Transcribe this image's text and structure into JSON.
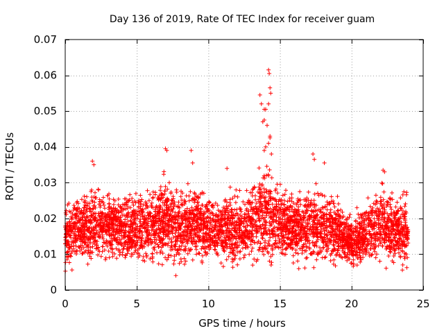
{
  "chart_data": {
    "type": "scatter",
    "title": "Day 136 of 2019, Rate Of TEC Index for receiver guam",
    "xlabel": "GPS time / hours",
    "ylabel": "ROTI / TECUs",
    "xlim": [
      0,
      25
    ],
    "ylim": [
      0,
      0.07
    ],
    "xticks": [
      0,
      5,
      10,
      15,
      20,
      25
    ],
    "xtick_labels": [
      "0",
      "5",
      "10",
      "15",
      "20",
      "25"
    ],
    "yticks": [
      0,
      0.01,
      0.02,
      0.03,
      0.04,
      0.05,
      0.06,
      0.07
    ],
    "ytick_labels": [
      "0",
      "0.01",
      "0.02",
      "0.03",
      "0.04",
      "0.05",
      "0.06",
      "0.07"
    ],
    "grid": true,
    "marker": "+",
    "color": "#ff0000",
    "series": [
      {
        "name": "ROTI",
        "envelope": {
          "description": "approximate typical band of ROTI values (TECU/min) by hour",
          "hours": [
            0,
            1,
            2,
            3,
            4,
            5,
            6,
            7,
            8,
            9,
            10,
            11,
            12,
            13,
            14,
            15,
            16,
            17,
            18,
            19,
            20,
            21,
            22,
            23,
            24
          ],
          "low": [
            0.005,
            0.006,
            0.006,
            0.006,
            0.006,
            0.006,
            0.006,
            0.006,
            0.004,
            0.006,
            0.006,
            0.006,
            0.005,
            0.006,
            0.006,
            0.006,
            0.006,
            0.006,
            0.006,
            0.006,
            0.005,
            0.006,
            0.006,
            0.005,
            0.005
          ],
          "high": [
            0.025,
            0.027,
            0.03,
            0.028,
            0.027,
            0.028,
            0.029,
            0.032,
            0.028,
            0.031,
            0.027,
            0.027,
            0.028,
            0.03,
            0.035,
            0.03,
            0.027,
            0.03,
            0.028,
            0.026,
            0.02,
            0.025,
            0.03,
            0.027,
            0.028
          ]
        },
        "notable_points": [
          {
            "x": 1.9,
            "y": 0.036
          },
          {
            "x": 2.0,
            "y": 0.035
          },
          {
            "x": 7.0,
            "y": 0.0395
          },
          {
            "x": 7.1,
            "y": 0.039
          },
          {
            "x": 8.8,
            "y": 0.039
          },
          {
            "x": 8.9,
            "y": 0.0355
          },
          {
            "x": 11.3,
            "y": 0.034
          },
          {
            "x": 13.6,
            "y": 0.0545
          },
          {
            "x": 13.7,
            "y": 0.052
          },
          {
            "x": 13.9,
            "y": 0.0505
          },
          {
            "x": 14.0,
            "y": 0.0505
          },
          {
            "x": 14.2,
            "y": 0.0615
          },
          {
            "x": 14.25,
            "y": 0.0605
          },
          {
            "x": 14.3,
            "y": 0.0565
          },
          {
            "x": 14.35,
            "y": 0.055
          },
          {
            "x": 14.2,
            "y": 0.052
          },
          {
            "x": 13.8,
            "y": 0.047
          },
          {
            "x": 13.9,
            "y": 0.0475
          },
          {
            "x": 14.1,
            "y": 0.046
          },
          {
            "x": 14.3,
            "y": 0.043
          },
          {
            "x": 14.3,
            "y": 0.0425
          },
          {
            "x": 14.2,
            "y": 0.041
          },
          {
            "x": 14.0,
            "y": 0.04
          },
          {
            "x": 13.9,
            "y": 0.039
          },
          {
            "x": 14.4,
            "y": 0.038
          },
          {
            "x": 17.3,
            "y": 0.038
          },
          {
            "x": 17.4,
            "y": 0.0365
          },
          {
            "x": 18.1,
            "y": 0.0355
          },
          {
            "x": 22.2,
            "y": 0.0335
          },
          {
            "x": 22.3,
            "y": 0.033
          }
        ]
      }
    ]
  }
}
